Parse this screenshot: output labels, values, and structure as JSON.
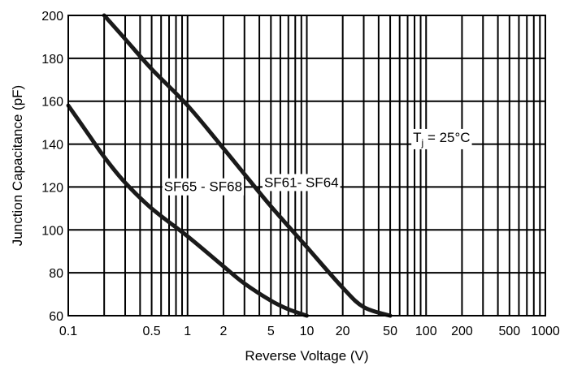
{
  "chart_data": {
    "type": "line",
    "title": "",
    "xlabel": "Reverse Voltage (V)",
    "ylabel": "Junction Capacitance (pF)",
    "xscale": "log",
    "xlim": [
      0.1,
      1000
    ],
    "ylim": [
      60,
      200
    ],
    "grid": true,
    "x_ticks": [
      0.1,
      0.5,
      1,
      2,
      5,
      10,
      20,
      50,
      100,
      200,
      500,
      1000
    ],
    "x_tick_labels": [
      "0.1",
      "0.5",
      "1",
      "2",
      "5",
      "10",
      "20",
      "50",
      "100",
      "200",
      "500",
      "1000"
    ],
    "y_ticks": [
      60,
      80,
      100,
      120,
      140,
      160,
      180,
      200
    ],
    "y_tick_labels": [
      "60",
      "80",
      "100",
      "120",
      "140",
      "160",
      "180",
      "200"
    ],
    "series": [
      {
        "name": "SF61- SF64",
        "color": "#1a1a1a",
        "x": [
          0.2,
          0.3,
          0.5,
          1,
          2,
          3,
          5,
          10,
          20,
          30,
          50
        ],
        "y": [
          200,
          189,
          175,
          158,
          138,
          126,
          111,
          92,
          73,
          64,
          60
        ]
      },
      {
        "name": "SF65 - SF68",
        "color": "#1a1a1a",
        "x": [
          0.1,
          0.15,
          0.2,
          0.3,
          0.5,
          1,
          2,
          3,
          5,
          7,
          10
        ],
        "y": [
          158,
          144,
          134,
          122,
          110,
          97,
          83,
          75,
          67,
          63,
          60
        ]
      }
    ],
    "annotations": [
      {
        "text": "SF65 - SF68",
        "x": 1.35,
        "y": 118
      },
      {
        "text": "SF61- SF64",
        "x": 9,
        "y": 120
      },
      {
        "text": "T",
        "sub": "j",
        "rest": " = 25°C",
        "x": 135,
        "y": 141
      }
    ]
  }
}
